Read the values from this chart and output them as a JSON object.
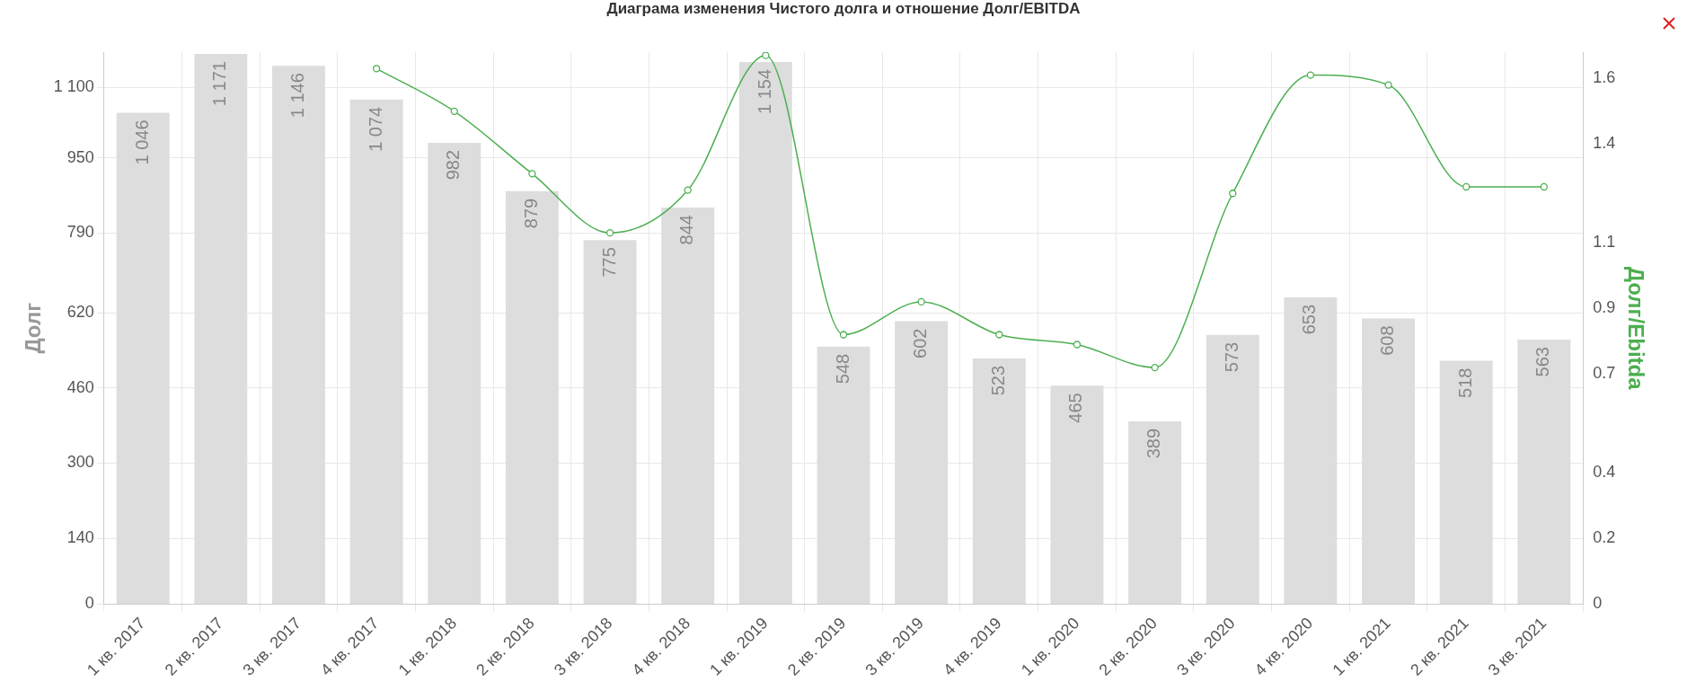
{
  "chart_data": {
    "type": "bar",
    "title": "Диаграма изменения Чистого долга и отношение Долг/EBITDA",
    "ylabel": "Долг",
    "y2label": "Долг/Ebitda",
    "categories": [
      "1 кв. 2017",
      "2 кв. 2017",
      "3 кв. 2017",
      "4 кв. 2017",
      "1 кв. 2018",
      "2 кв. 2018",
      "3 кв. 2018",
      "4 кв. 2018",
      "1 кв. 2019",
      "2 кв. 2019",
      "3 кв. 2019",
      "4 кв. 2019",
      "1 кв. 2020",
      "2 кв. 2020",
      "3 кв. 2020",
      "4 кв. 2020",
      "1 кв. 2021",
      "2 кв. 2021",
      "3 кв. 2021"
    ],
    "series": [
      {
        "color": "#dddddd",
        "values": [
          1046,
          1171,
          1146,
          1074,
          982,
          879,
          775,
          844,
          1154,
          548,
          602,
          523,
          465,
          389,
          573,
          653,
          608,
          518,
          563
        ],
        "value_labels": [
          "1 046",
          "1 171",
          "1 146",
          "1 074",
          "982",
          "879",
          "775",
          "844",
          "1 154",
          "548",
          "602",
          "523",
          "465",
          "389",
          "573",
          "653",
          "608",
          "518",
          "563"
        ]
      },
      {
        "type": "line",
        "axis": "y2",
        "color": "#4caf50",
        "marker": "circle",
        "values": [
          null,
          null,
          null,
          1.63,
          1.5,
          1.31,
          1.13,
          1.26,
          1.67,
          0.82,
          0.92,
          0.82,
          0.79,
          0.72,
          1.25,
          1.61,
          1.58,
          1.27,
          1.27
        ]
      }
    ],
    "ylim": [
      0,
      1175
    ],
    "yticks": [
      0,
      140,
      300,
      460,
      620,
      790,
      950,
      {
        "value": 1100,
        "label": "1 100"
      }
    ],
    "y2lim": [
      0,
      1.68
    ],
    "y2ticks": [
      0,
      0.2,
      0.4,
      0.7,
      0.9,
      1.1,
      1.4,
      1.6
    ],
    "grid": true,
    "legend": false
  }
}
